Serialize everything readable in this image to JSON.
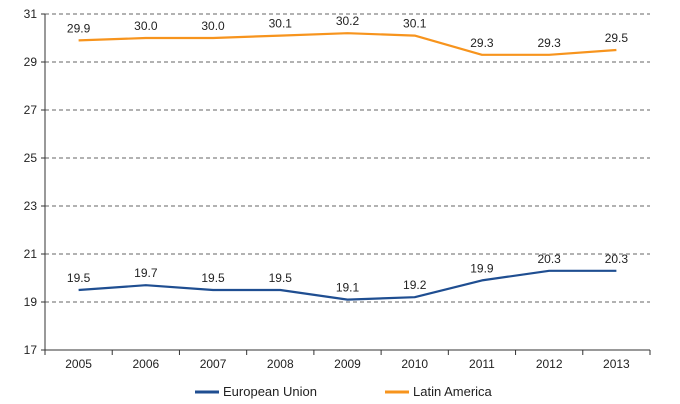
{
  "chart_data": {
    "type": "line",
    "title": "",
    "xlabel": "",
    "ylabel": "",
    "categories": [
      "2005",
      "2006",
      "2007",
      "2008",
      "2009",
      "2010",
      "2011",
      "2012",
      "2013"
    ],
    "ylim": [
      17,
      31
    ],
    "yticks": [
      17,
      19,
      21,
      23,
      25,
      27,
      29,
      31
    ],
    "grid": true,
    "legend": "bottom",
    "series": [
      {
        "name": "European Union",
        "color": "#1f4e91",
        "values": [
          19.5,
          19.7,
          19.5,
          19.5,
          19.1,
          19.2,
          19.9,
          20.3,
          20.3
        ],
        "labels": [
          "19.5",
          "19.7",
          "19.5",
          "19.5",
          "19.1",
          "19.2",
          "19.9",
          "20.3",
          "20.3"
        ]
      },
      {
        "name": "Latin America",
        "color": "#f7941d",
        "values": [
          29.9,
          30.0,
          30.0,
          30.1,
          30.2,
          30.1,
          29.3,
          29.3,
          29.5
        ],
        "labels": [
          "29.9",
          "30.0",
          "30.0",
          "30.1",
          "30.2",
          "30.1",
          "29.3",
          "29.3",
          "29.5"
        ]
      }
    ]
  }
}
